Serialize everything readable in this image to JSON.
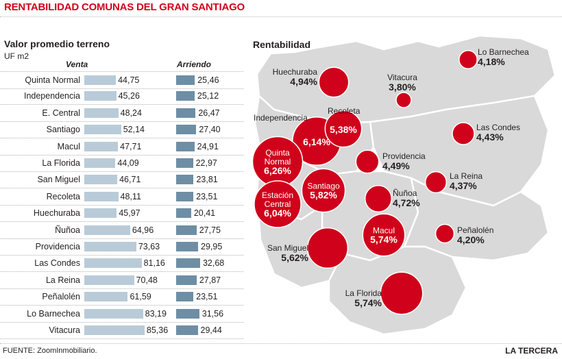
{
  "title": "RENTABILIDAD COMUNAS DEL GRAN SANTIAGO",
  "left_panel": {
    "title": "Valor promedio terreno",
    "unit": "UF m2",
    "venta_label": "Venta",
    "arriendo_label": "Arriendo"
  },
  "map_panel": {
    "title": "Rentabilidad"
  },
  "colors": {
    "accent": "#d0021b",
    "venta_bar": "#b9cbd8",
    "arriendo_bar": "#6e8ea5",
    "map_fill": "#d9d9d9",
    "bubble": "#d0021b"
  },
  "chart_data": [
    {
      "type": "bar",
      "title": "Valor promedio terreno",
      "unit": "UF m2",
      "categories": [
        "Quinta Normal",
        "Independencia",
        "E. Central",
        "Santiago",
        "Macul",
        "La Florida",
        "San Miguel",
        "Recoleta",
        "Huechuraba",
        "Ñuñoa",
        "Providencia",
        "Las Condes",
        "La Reina",
        "Peñalolén",
        "Lo Barnechea",
        "Vitacura"
      ],
      "series": [
        {
          "name": "Venta",
          "values": [
            44.75,
            45.26,
            48.24,
            52.14,
            47.71,
            44.09,
            46.71,
            48.11,
            45.97,
            64.96,
            73.63,
            81.16,
            70.48,
            61.59,
            83.19,
            85.36
          ],
          "labels": [
            "44,75",
            "45,26",
            "48,24",
            "52,14",
            "47,71",
            "44,09",
            "46,71",
            "48,11",
            "45,97",
            "64,96",
            "73,63",
            "81,16",
            "70,48",
            "61,59",
            "83,19",
            "85,36"
          ]
        },
        {
          "name": "Arriendo",
          "values": [
            25.46,
            25.12,
            26.47,
            27.4,
            24.91,
            22.97,
            23.81,
            23.51,
            20.41,
            27.75,
            29.95,
            32.68,
            27.87,
            23.51,
            31.56,
            29.44
          ],
          "labels": [
            "25,46",
            "25,12",
            "26,47",
            "27,40",
            "24,91",
            "22,97",
            "23,81",
            "23,51",
            "20,41",
            "27,75",
            "29,95",
            "32,68",
            "27,87",
            "23,51",
            "31,56",
            "29,44"
          ]
        }
      ]
    },
    {
      "type": "bubble-map",
      "title": "Rentabilidad",
      "points": [
        {
          "name": "Lo Barnechea",
          "value": 4.18,
          "label": "4,18%"
        },
        {
          "name": "Huechuraba",
          "value": 4.94,
          "label": "4,94%"
        },
        {
          "name": "Vitacura",
          "value": 3.8,
          "label": "3,80%"
        },
        {
          "name": "Independencia",
          "value": 6.14,
          "label": "6,14%"
        },
        {
          "name": "Recoleta",
          "value": 5.38,
          "label": "5,38%"
        },
        {
          "name": "Las Condes",
          "value": 4.43,
          "label": "4,43%"
        },
        {
          "name": "Quinta Normal",
          "value": 6.26,
          "label": "6,26%"
        },
        {
          "name": "Providencia",
          "value": 4.49,
          "label": "4,49%"
        },
        {
          "name": "La Reina",
          "value": 4.37,
          "label": "4,37%"
        },
        {
          "name": "Santiago",
          "value": 5.82,
          "label": "5,82%"
        },
        {
          "name": "Estación Central",
          "value": 6.04,
          "label": "6,04%"
        },
        {
          "name": "Ñuñoa",
          "value": 4.72,
          "label": "4,72%"
        },
        {
          "name": "Peñalolén",
          "value": 4.2,
          "label": "4,20%"
        },
        {
          "name": "Macul",
          "value": 5.74,
          "label": "5,74%"
        },
        {
          "name": "San Miguel",
          "value": 5.62,
          "label": "5,62%"
        },
        {
          "name": "La Florida",
          "value": 5.74,
          "label": "5,74%"
        }
      ]
    }
  ],
  "footer": {
    "source": "FUENTE: ZoomInmobiliario.",
    "brand": "LA TERCERA"
  }
}
